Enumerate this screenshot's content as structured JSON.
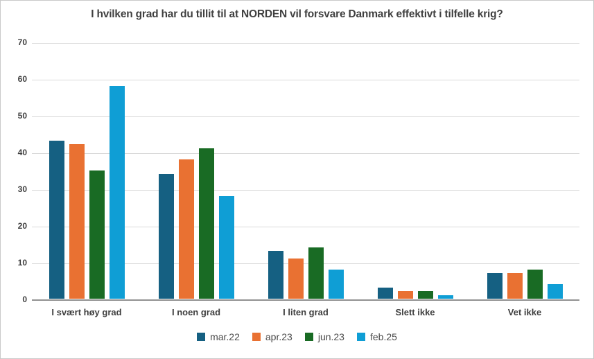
{
  "title": "I hvilken grad har du tillit til at NORDEN vil forsvare Danmark effektivt i tilfelle krig?",
  "chart_data": {
    "type": "bar",
    "title": "I hvilken grad har du tillit til at NORDEN vil forsvare Danmark effektivt i tilfelle krig?",
    "categories": [
      "I svært høy grad",
      "I noen grad",
      "I liten grad",
      "Slett ikke",
      "Vet ikke"
    ],
    "series": [
      {
        "name": "mar.22",
        "color": "#156082",
        "values": [
          43,
          34,
          13,
          3,
          7
        ]
      },
      {
        "name": "apr.23",
        "color": "#E97132",
        "values": [
          42,
          38,
          11,
          2,
          7
        ]
      },
      {
        "name": "jun.23",
        "color": "#196B24",
        "values": [
          35,
          41,
          14,
          2,
          8
        ]
      },
      {
        "name": "feb.25",
        "color": "#0F9ED5",
        "values": [
          58,
          28,
          8,
          1,
          4
        ]
      }
    ],
    "xlabel": "",
    "ylabel": "",
    "ylim": [
      0,
      70
    ],
    "yticks": [
      0,
      10,
      20,
      30,
      40,
      50,
      60,
      70
    ],
    "grid": true,
    "legend_position": "bottom"
  },
  "colors": {
    "gridline": "#d9d9d9",
    "axis_line": "#919191",
    "title_text": "#404040",
    "tick_text": "#404040",
    "legend_text": "#4a4a4a",
    "background": "#ffffff",
    "border": "#c9c9c9"
  }
}
